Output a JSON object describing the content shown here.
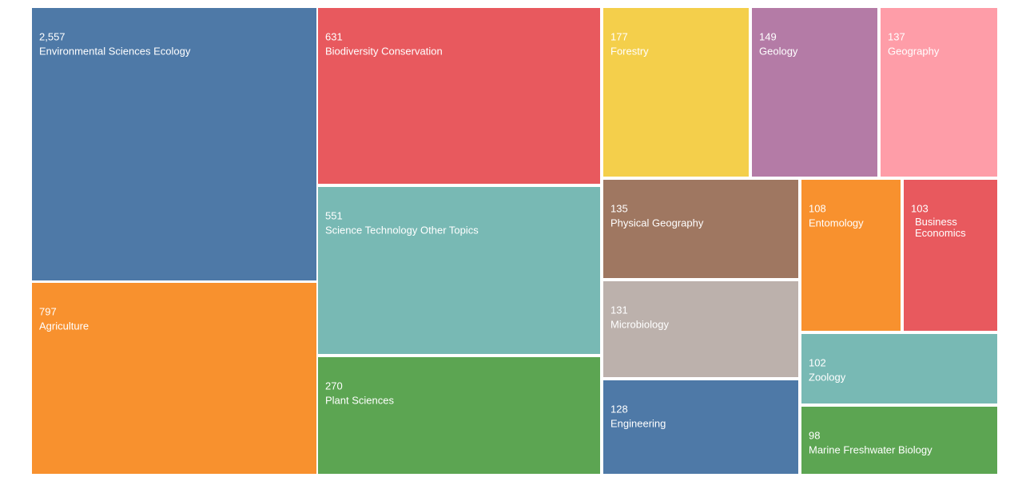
{
  "chart_data": {
    "type": "treemap",
    "categories": [
      "Environmental Sciences Ecology",
      "Agriculture",
      "Biodiversity Conservation",
      "Science Technology Other Topics",
      "Plant Sciences",
      "Forestry",
      "Geology",
      "Geography",
      "Physical Geography",
      "Microbiology",
      "Engineering",
      "Entomology",
      "Business Economics",
      "Zoology",
      "Marine Freshwater Biology"
    ],
    "values": [
      2557,
      797,
      631,
      551,
      270,
      177,
      149,
      137,
      135,
      131,
      128,
      108,
      103,
      102,
      98
    ],
    "value_labels": [
      "2,557",
      "797",
      "631",
      "551",
      "270",
      "177",
      "149",
      "137",
      "135",
      "131",
      "128",
      "108",
      "103",
      "102",
      "98"
    ],
    "colors": [
      "#4e79a7",
      "#f8912e",
      "#e8595e",
      "#78b9b4",
      "#5ca552",
      "#f4cf4b",
      "#b47ba6",
      "#fe9da8",
      "#9f7761",
      "#bcb1ac",
      "#4e79a7",
      "#f8912e",
      "#e8595e",
      "#78b9b4",
      "#5ca552"
    ]
  }
}
